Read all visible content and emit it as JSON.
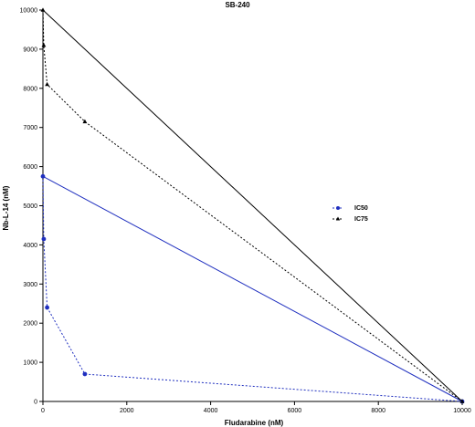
{
  "chart_data": {
    "type": "line",
    "title": "SB-240",
    "xlabel": "Fludarabine (nM)",
    "ylabel": "Nb-L-14 (nM)",
    "xlim": [
      0,
      10000
    ],
    "ylim": [
      0,
      10000
    ],
    "x_ticks": [
      0,
      2000,
      4000,
      6000,
      8000,
      10000
    ],
    "y_ticks": [
      0,
      1000,
      2000,
      3000,
      4000,
      5000,
      6000,
      7000,
      8000,
      9000,
      10000
    ],
    "grid": false,
    "legend_position": "right",
    "colors": {
      "ic50": "#1f2fbf",
      "ic75": "#000000",
      "reference": "#000000"
    },
    "series": [
      {
        "name": "IC50",
        "role": "isobologram points",
        "style": "dashed-marker-circle",
        "color": "#1f2fbf",
        "points": [
          [
            0,
            5750
          ],
          [
            20,
            4150
          ],
          [
            100,
            2400
          ],
          [
            1000,
            700
          ],
          [
            10000,
            0
          ]
        ]
      },
      {
        "name": "IC75",
        "role": "isobologram points",
        "style": "dashed-marker-triangle",
        "color": "#000000",
        "points": [
          [
            0,
            10000
          ],
          [
            20,
            9100
          ],
          [
            100,
            8100
          ],
          [
            1000,
            7150
          ],
          [
            10000,
            0
          ]
        ]
      },
      {
        "role": "additivity line",
        "style": "solid",
        "color": "#1f2fbf",
        "points": [
          [
            0,
            5750
          ],
          [
            10000,
            0
          ]
        ]
      },
      {
        "role": "additivity line",
        "style": "solid",
        "color": "#000000",
        "points": [
          [
            0,
            10000
          ],
          [
            10000,
            0
          ]
        ]
      }
    ]
  }
}
